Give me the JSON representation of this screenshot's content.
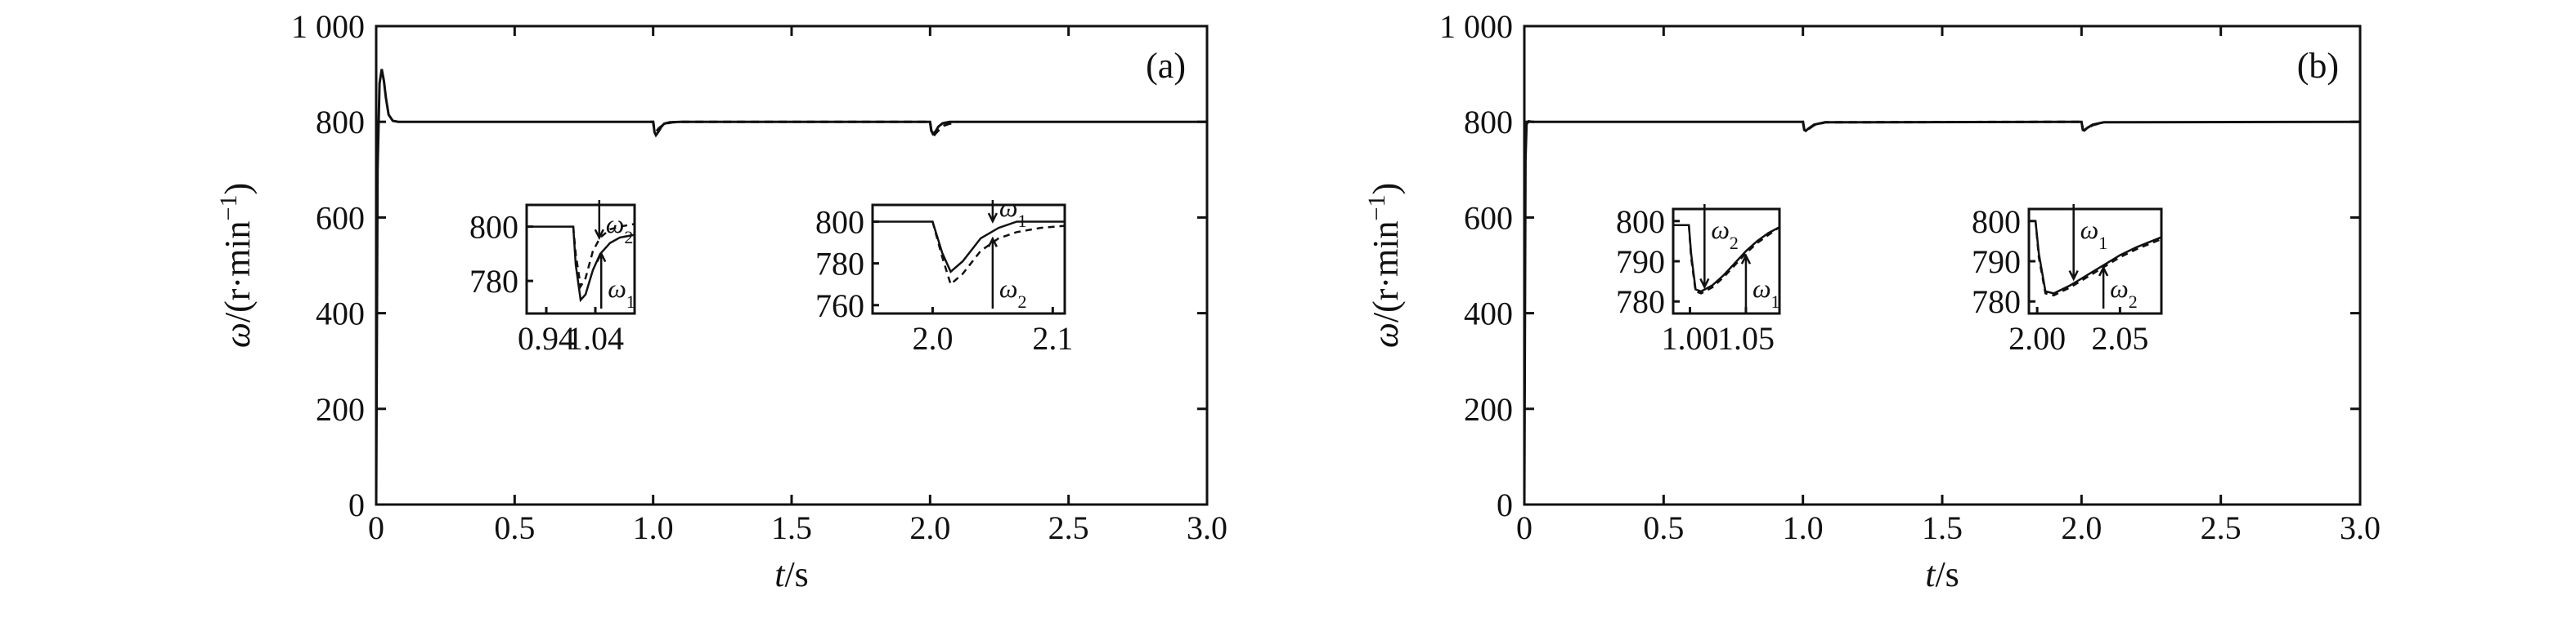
{
  "chart_data": [
    {
      "type": "line",
      "panel_label": "(a)",
      "xlabel_var": "t",
      "xlabel_unit": "/s",
      "ylabel_var": "ω",
      "ylabel_unit": "/(r·min",
      "ylabel_exp": "−1",
      "ylabel_close": ")",
      "xlim": [
        0,
        3.0
      ],
      "ylim": [
        0,
        1000
      ],
      "xticks": [
        "0",
        "0.5",
        "1.0",
        "1.5",
        "2.0",
        "2.5",
        "3.0"
      ],
      "yticks": [
        "0",
        "200",
        "400",
        "600",
        "800",
        "1 000"
      ],
      "series": [
        {
          "style": "solid",
          "x": [
            0,
            0.005,
            0.012,
            0.02,
            0.028,
            0.035,
            0.045,
            0.06,
            0.08,
            0.12,
            0.99,
            1.0,
            1.005,
            1.01,
            1.02,
            1.03,
            1.04,
            1.06,
            1.1,
            1.999,
            2.0,
            2.005,
            2.01,
            2.02,
            2.03,
            2.045,
            2.07,
            2.1,
            3.0
          ],
          "y": [
            0,
            700,
            880,
            910,
            885,
            850,
            815,
            802,
            800,
            800,
            800,
            800,
            778,
            772,
            780,
            790,
            796,
            799,
            800,
            800,
            800,
            781,
            775,
            780,
            790,
            797,
            800,
            800,
            800
          ]
        },
        {
          "style": "dashed",
          "x": [
            0.99,
            1.0,
            1.005,
            1.012,
            1.02,
            1.035,
            1.05,
            1.07,
            1.1,
            1.999,
            2.0,
            2.005,
            2.012,
            2.02,
            2.035,
            2.05,
            2.07,
            2.1
          ],
          "y": [
            800,
            800,
            782,
            780,
            786,
            793,
            797,
            799,
            800,
            800,
            800,
            778,
            770,
            776,
            785,
            792,
            796,
            800
          ]
        }
      ],
      "insets": [
        {
          "xlim": [
            0.9,
            1.12
          ],
          "ylim": [
            768,
            808
          ],
          "xticks": [
            "0.94",
            "1.04"
          ],
          "yticks": [
            "780",
            "800"
          ],
          "series": [
            {
              "style": "solid",
              "x": [
                0.9,
                0.995,
                1.0,
                1.01,
                1.02,
                1.035,
                1.05,
                1.07,
                1.09,
                1.12
              ],
              "y": [
                800,
                800,
                786,
                773,
                775,
                784,
                790,
                794,
                796,
                797
              ]
            },
            {
              "style": "dashed",
              "x": [
                0.995,
                1.0,
                1.01,
                1.02,
                1.035,
                1.05,
                1.07,
                1.09,
                1.12
              ],
              "y": [
                800,
                790,
                778,
                781,
                791,
                796,
                799,
                800,
                801
              ]
            }
          ],
          "annotations": [
            {
              "var": "ω",
              "sub": "2",
              "target_x": 1.048,
              "target_y": 795,
              "dir": "down"
            },
            {
              "var": "ω",
              "sub": "1",
              "target_x": 1.052,
              "target_y": 791,
              "dir": "up"
            }
          ]
        },
        {
          "xlim": [
            1.95,
            2.11
          ],
          "ylim": [
            756,
            808
          ],
          "xticks": [
            "2.0",
            "2.1"
          ],
          "yticks": [
            "760",
            "780",
            "800"
          ],
          "series": [
            {
              "style": "solid",
              "x": [
                1.95,
                2.0,
                2.008,
                2.015,
                2.025,
                2.04,
                2.055,
                2.07,
                2.11
              ],
              "y": [
                800,
                800,
                785,
                776,
                781,
                792,
                797,
                800,
                800
              ]
            },
            {
              "style": "dashed",
              "x": [
                2.0,
                2.008,
                2.015,
                2.025,
                2.04,
                2.055,
                2.07,
                2.09,
                2.11
              ],
              "y": [
                800,
                783,
                770,
                775,
                786,
                792,
                795,
                797,
                798
              ]
            }
          ],
          "annotations": [
            {
              "var": "ω",
              "sub": "1",
              "target_x": 2.05,
              "target_y": 799,
              "dir": "down"
            },
            {
              "var": "ω",
              "sub": "2",
              "target_x": 2.05,
              "target_y": 793,
              "dir": "up"
            }
          ]
        }
      ]
    },
    {
      "type": "line",
      "panel_label": "(b)",
      "xlabel_var": "t",
      "xlabel_unit": "/s",
      "ylabel_var": "ω",
      "ylabel_unit": "/(r·min",
      "ylabel_exp": "−1",
      "ylabel_close": ")",
      "xlim": [
        0,
        3.0
      ],
      "ylim": [
        0,
        1000
      ],
      "xticks": [
        "0",
        "0.5",
        "1.0",
        "1.5",
        "2.0",
        "2.5",
        "3.0"
      ],
      "yticks": [
        "0",
        "200",
        "400",
        "600",
        "800",
        "1 000"
      ],
      "series": [
        {
          "style": "solid",
          "x": [
            0,
            0.004,
            0.008,
            0.015,
            0.03,
            0.999,
            1.0,
            1.005,
            1.01,
            1.02,
            1.04,
            1.08,
            1.999,
            2.0,
            2.005,
            2.01,
            2.02,
            2.04,
            2.08,
            3.0
          ],
          "y": [
            0,
            720,
            795,
            801,
            800,
            800,
            800,
            783,
            781,
            786,
            794,
            799,
            800,
            800,
            784,
            782,
            787,
            794,
            799,
            800
          ]
        },
        {
          "style": "dashed",
          "x": [
            0.999,
            1.0,
            1.005,
            1.01,
            1.02,
            1.04,
            1.08,
            1.999,
            2.0,
            2.005,
            2.01,
            2.02,
            2.04,
            2.08
          ],
          "y": [
            800,
            800,
            782,
            781,
            785,
            793,
            799,
            800,
            800,
            783,
            782,
            786,
            793,
            799
          ]
        }
      ],
      "insets": [
        {
          "xlim": [
            0.985,
            1.08
          ],
          "ylim": [
            777,
            803
          ],
          "xticks": [
            "1.00",
            "1.05"
          ],
          "yticks": [
            "780",
            "790",
            "800"
          ],
          "series": [
            {
              "style": "solid",
              "x": [
                0.985,
                0.999,
                1.001,
                1.005,
                1.01,
                1.02,
                1.03,
                1.04,
                1.05,
                1.06,
                1.07,
                1.08
              ],
              "y": [
                799,
                799,
                792,
                783,
                782.5,
                784,
                786.5,
                789.5,
                792.5,
                795,
                797,
                798.5
              ]
            },
            {
              "style": "dashed",
              "x": [
                0.999,
                1.001,
                1.005,
                1.01,
                1.02,
                1.03,
                1.04,
                1.05,
                1.06,
                1.07,
                1.08
              ],
              "y": [
                799,
                791,
                782.5,
                782,
                783.5,
                786,
                789,
                792,
                794.5,
                796.5,
                798.5
              ]
            }
          ],
          "annotations": [
            {
              "var": "ω",
              "sub": "2",
              "target_x": 1.013,
              "target_y": 783,
              "dir": "down"
            },
            {
              "var": "ω",
              "sub": "1",
              "target_x": 1.05,
              "target_y": 792,
              "dir": "up"
            }
          ]
        },
        {
          "xlim": [
            1.995,
            2.075
          ],
          "ylim": [
            777,
            803
          ],
          "xticks": [
            "2.00",
            "2.05"
          ],
          "yticks": [
            "780",
            "790",
            "800"
          ],
          "series": [
            {
              "style": "solid",
              "x": [
                1.995,
                1.999,
                2.001,
                2.005,
                2.01,
                2.02,
                2.03,
                2.04,
                2.05,
                2.06,
                2.075
              ],
              "y": [
                800,
                800,
                792,
                782.5,
                782,
                784,
                786.5,
                789,
                791.5,
                793.5,
                796
              ]
            },
            {
              "style": "dashed",
              "x": [
                1.999,
                2.001,
                2.005,
                2.01,
                2.02,
                2.03,
                2.04,
                2.05,
                2.06,
                2.075
              ],
              "y": [
                800,
                791,
                782,
                781.5,
                783.5,
                786,
                788.5,
                791,
                793,
                795.5
              ]
            }
          ],
          "annotations": [
            {
              "var": "ω",
              "sub": "1",
              "target_x": 2.022,
              "target_y": 785,
              "dir": "down"
            },
            {
              "var": "ω",
              "sub": "2",
              "target_x": 2.04,
              "target_y": 789,
              "dir": "up"
            }
          ]
        }
      ]
    }
  ]
}
